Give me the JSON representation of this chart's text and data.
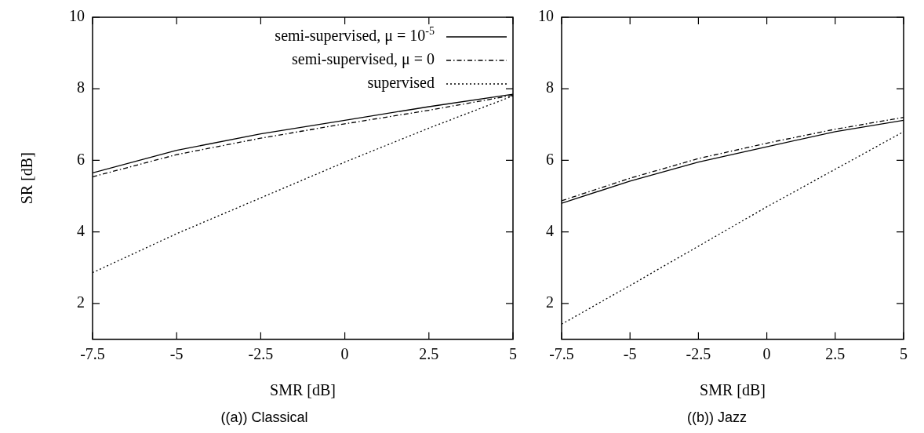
{
  "chart_data": [
    {
      "type": "line",
      "title": "((a)) Classical",
      "xlabel": "SMR [dB]",
      "ylabel": "SR [dB]",
      "x": [
        -7.5,
        -5,
        -2.5,
        0,
        2.5,
        5
      ],
      "xlim": [
        -7.5,
        5
      ],
      "xticks": [
        -7.5,
        -5,
        -2.5,
        0,
        2.5,
        5
      ],
      "ylim": [
        1,
        10
      ],
      "yticks": [
        2,
        4,
        6,
        8,
        10
      ],
      "grid": false,
      "legend": "top right",
      "marker": "none",
      "series": [
        {
          "name": "semi-supervised, μ = 10$^{-5}$",
          "color": "#000000",
          "line_style": "solid",
          "values": [
            5.65,
            6.28,
            6.74,
            7.12,
            7.5,
            7.85
          ]
        },
        {
          "name": "semi-supervised, μ = 0",
          "color": "#000000",
          "line_style": "dashdot",
          "values": [
            5.54,
            6.16,
            6.62,
            7.02,
            7.4,
            7.82
          ]
        },
        {
          "name": "supervised",
          "color": "#000000",
          "line_style": "dotted",
          "values": [
            2.86,
            3.95,
            4.95,
            5.95,
            6.9,
            7.8
          ]
        }
      ]
    },
    {
      "type": "line",
      "title": "((b)) Jazz",
      "xlabel": "SMR [dB]",
      "x": [
        -7.5,
        -5,
        -2.5,
        0,
        2.5,
        5
      ],
      "xlim": [
        -7.5,
        5
      ],
      "xticks": [
        -7.5,
        -5,
        -2.5,
        0,
        2.5,
        5
      ],
      "ylim": [
        1,
        10
      ],
      "yticks": [
        2,
        4,
        6,
        8,
        10
      ],
      "grid": false,
      "marker": "none",
      "series": [
        {
          "color": "#000000",
          "line_style": "solid",
          "values": [
            4.8,
            5.42,
            5.95,
            6.38,
            6.8,
            7.12
          ]
        },
        {
          "color": "#000000",
          "line_style": "dashdot",
          "values": [
            4.87,
            5.5,
            6.05,
            6.48,
            6.87,
            7.2
          ]
        },
        {
          "color": "#000000",
          "line_style": "dotted",
          "values": [
            1.42,
            2.5,
            3.6,
            4.7,
            5.75,
            6.8
          ]
        }
      ]
    }
  ]
}
